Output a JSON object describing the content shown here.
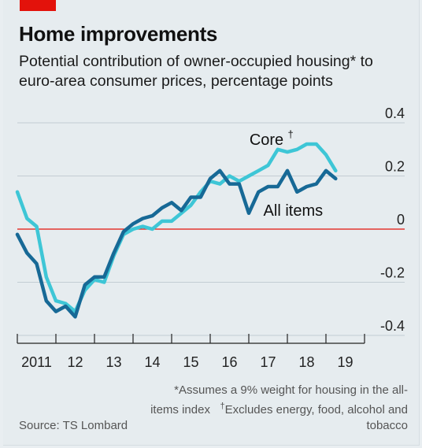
{
  "header": {
    "title": "Home improvements",
    "subtitle": "Potential contribution of owner-occupied housing* to euro-area consumer prices, percentage points"
  },
  "footer": {
    "note_part1": "*Assumes a 9% weight for housing in the all-items index",
    "note_dagger": "†",
    "note_part2": "Excludes energy, food, alcohol and tobacco",
    "source": "Source: TS Lombard"
  },
  "colors": {
    "core": "#3ec6d6",
    "all_items": "#176996",
    "zero_line": "#e3120b",
    "grid": "#c3cdd3",
    "axis": "#222222",
    "background": "#e6ecef"
  },
  "chart_data": {
    "type": "line",
    "title": "Home improvements",
    "subtitle": "Potential contribution of owner-occupied housing* to euro-area consumer prices, percentage points",
    "x_tick_labels": [
      "2011",
      "12",
      "13",
      "14",
      "15",
      "16",
      "17",
      "18",
      "19"
    ],
    "xlim": [
      2011,
      2020.0
    ],
    "ylim": [
      -0.4,
      0.4
    ],
    "y_ticks": [
      -0.4,
      -0.2,
      0,
      0.2,
      0.4
    ],
    "y_tick_labels": [
      "-0.4",
      "-0.2",
      "0",
      "0.2",
      "0.4"
    ],
    "grid": true,
    "series": [
      {
        "name": "Core",
        "name_suffix": "†",
        "color": "#3ec6d6",
        "x": [
          2011.0,
          2011.25,
          2011.5,
          2011.75,
          2012.0,
          2012.25,
          2012.5,
          2012.75,
          2013.0,
          2013.25,
          2013.5,
          2013.75,
          2014.0,
          2014.25,
          2014.5,
          2014.75,
          2015.0,
          2015.25,
          2015.5,
          2015.75,
          2016.0,
          2016.25,
          2016.5,
          2016.75,
          2017.0,
          2017.25,
          2017.5,
          2017.75,
          2018.0,
          2018.25,
          2018.5,
          2018.75,
          2019.0,
          2019.25
        ],
        "y": [
          0.14,
          0.04,
          0.01,
          -0.18,
          -0.27,
          -0.28,
          -0.31,
          -0.23,
          -0.19,
          -0.2,
          -0.1,
          -0.02,
          0.0,
          0.01,
          0.0,
          0.03,
          0.03,
          0.06,
          0.09,
          0.14,
          0.18,
          0.17,
          0.2,
          0.18,
          0.2,
          0.22,
          0.24,
          0.3,
          0.29,
          0.3,
          0.32,
          0.32,
          0.28,
          0.22
        ]
      },
      {
        "name": "All items",
        "color": "#176996",
        "x": [
          2011.0,
          2011.25,
          2011.5,
          2011.75,
          2012.0,
          2012.25,
          2012.5,
          2012.75,
          2013.0,
          2013.25,
          2013.5,
          2013.75,
          2014.0,
          2014.25,
          2014.5,
          2014.75,
          2015.0,
          2015.25,
          2015.5,
          2015.75,
          2016.0,
          2016.25,
          2016.5,
          2016.75,
          2017.0,
          2017.25,
          2017.5,
          2017.75,
          2018.0,
          2018.25,
          2018.5,
          2018.75,
          2019.0,
          2019.25
        ],
        "y": [
          -0.02,
          -0.09,
          -0.13,
          -0.27,
          -0.31,
          -0.29,
          -0.33,
          -0.21,
          -0.18,
          -0.18,
          -0.09,
          -0.01,
          0.02,
          0.04,
          0.05,
          0.08,
          0.1,
          0.07,
          0.12,
          0.12,
          0.19,
          0.22,
          0.17,
          0.17,
          0.06,
          0.14,
          0.16,
          0.16,
          0.22,
          0.14,
          0.16,
          0.17,
          0.22,
          0.19
        ]
      }
    ]
  }
}
